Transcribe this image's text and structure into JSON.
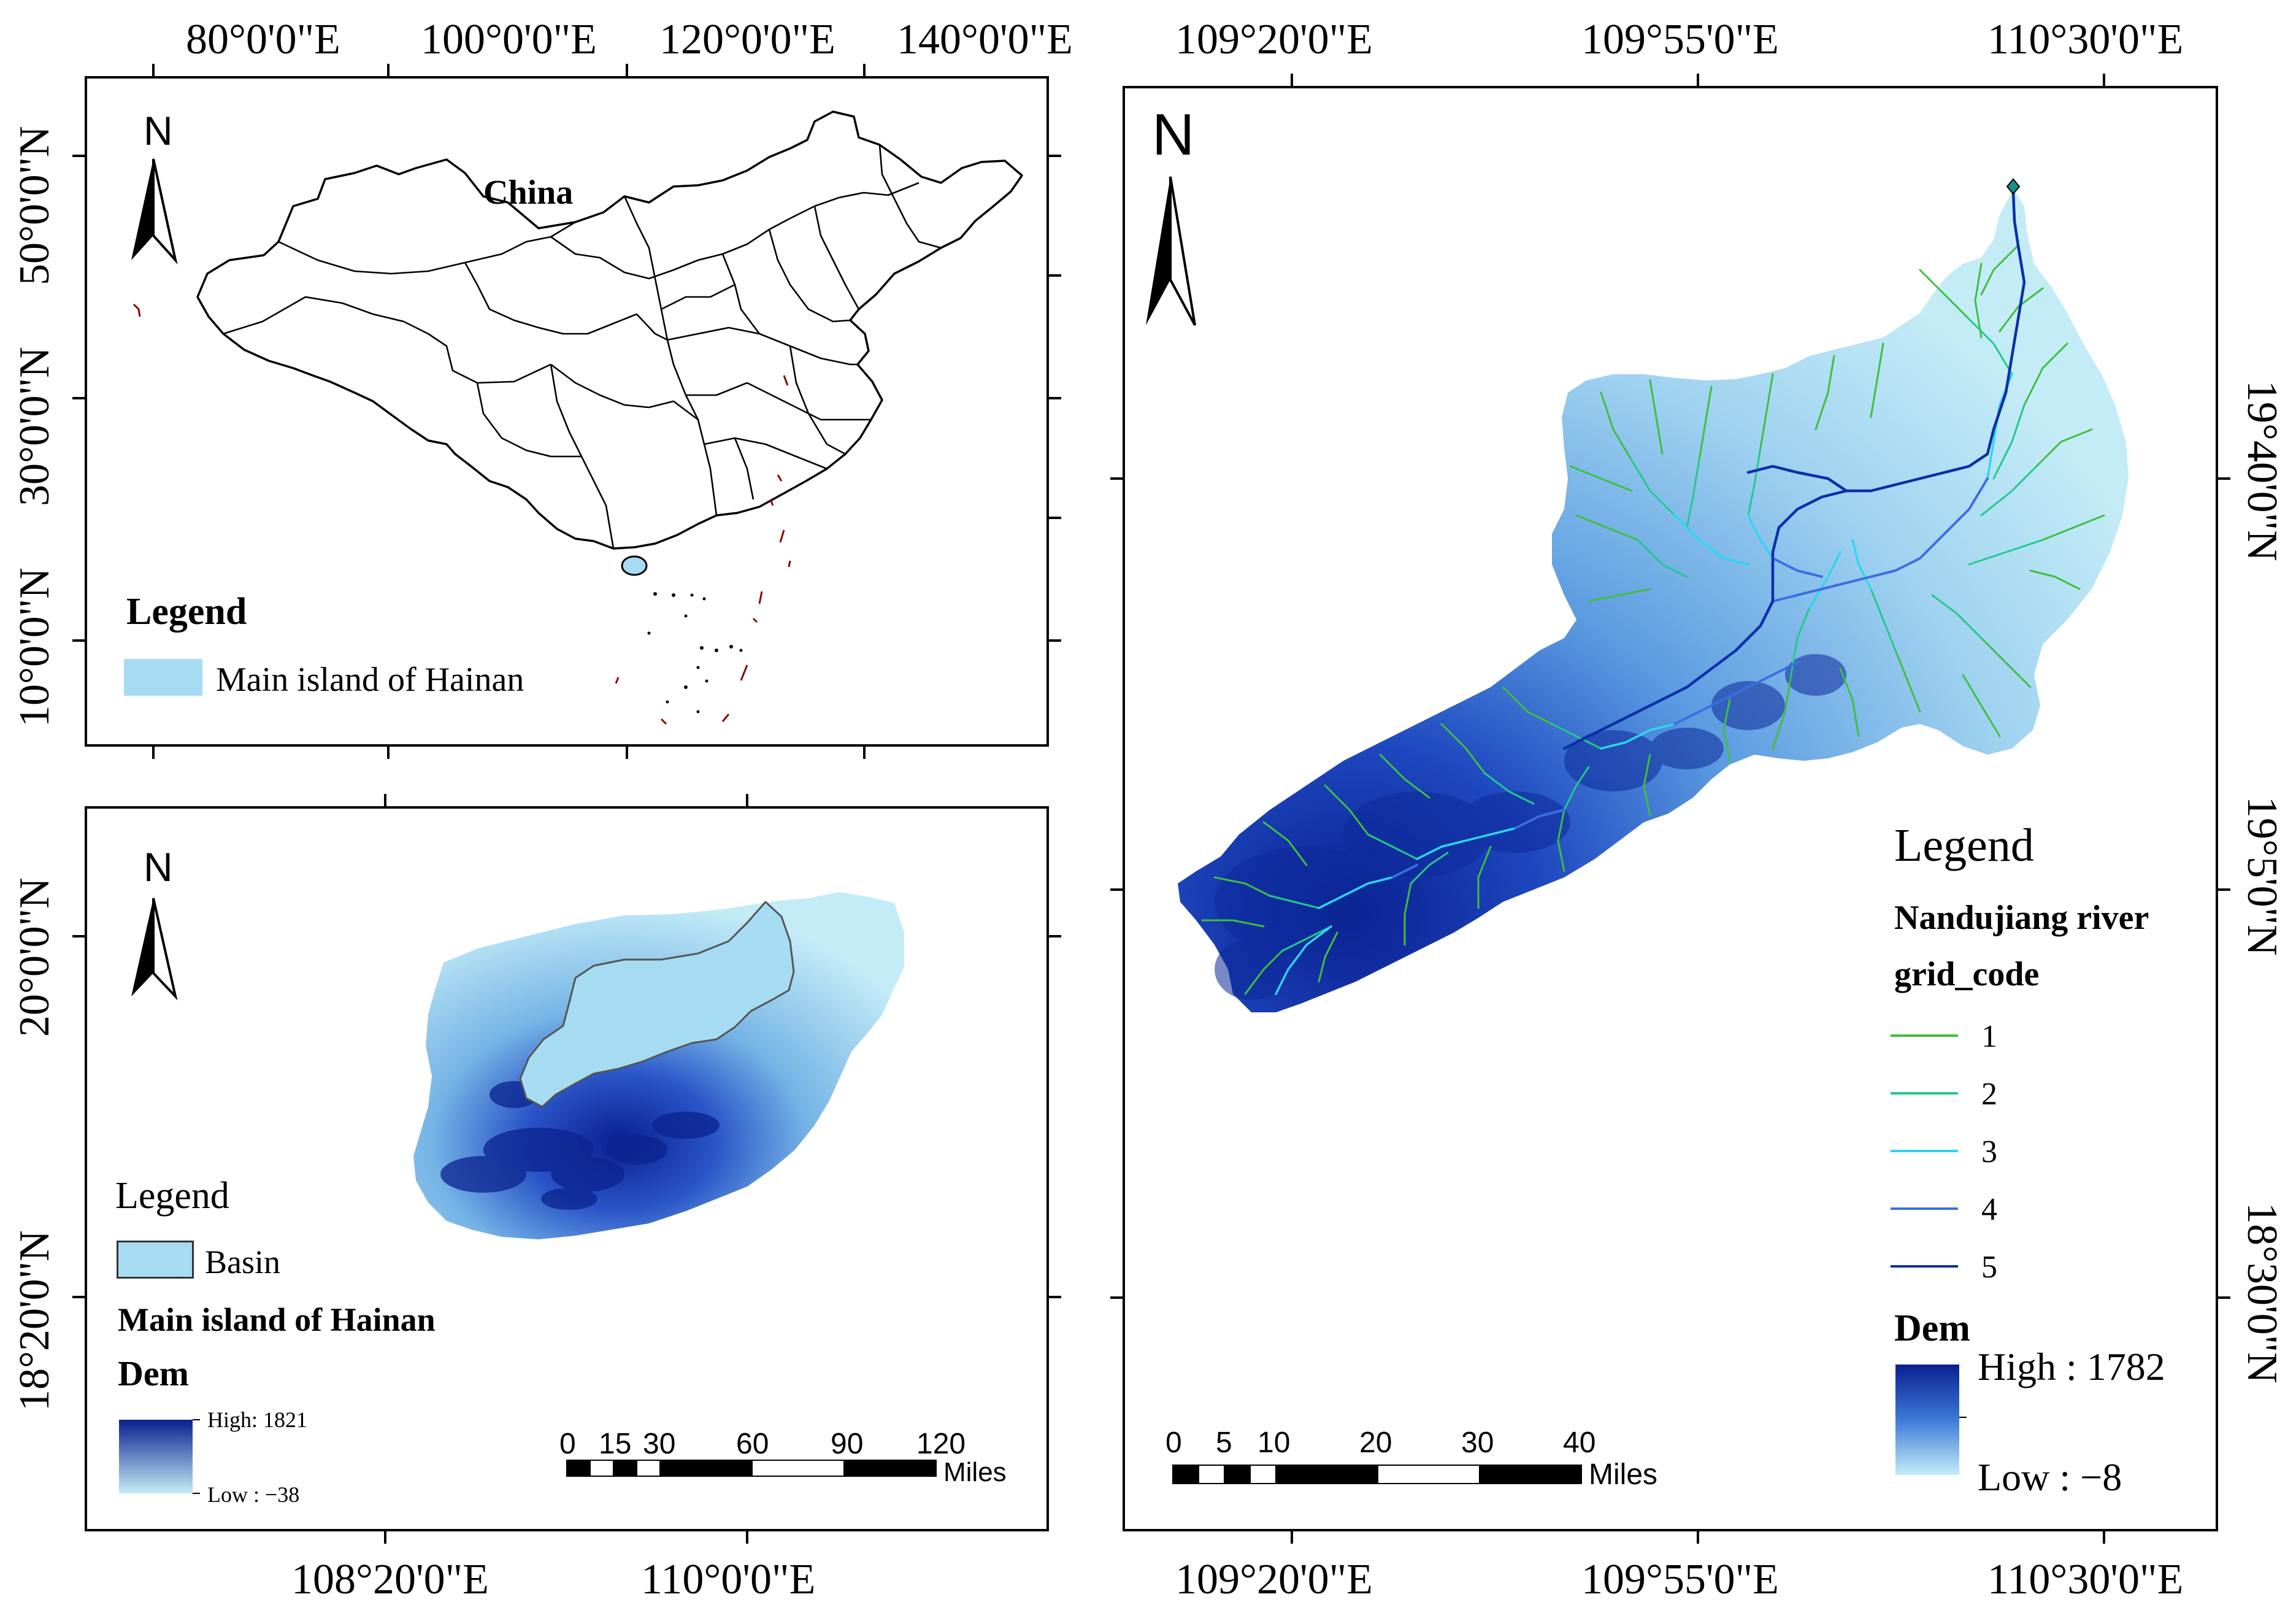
{
  "panel_china": {
    "top_ticks": [
      "80°0'0\"E",
      "100°0'0\"E",
      "120°0'0\"E",
      "140°0'0\"E"
    ],
    "left_ticks": [
      "50°0'0\"N",
      "30°0'0\"N",
      "10°0'0\"N"
    ],
    "north": "N",
    "country_label": "China",
    "legend_title": "Legend",
    "legend_item": "Main island of Hainan",
    "colors": {
      "island": "#a6dcf1",
      "outline": "#000000",
      "islets": "#8b0000"
    }
  },
  "panel_hainan": {
    "bottom_ticks": [
      "108°20'0\"E",
      "110°0'0\"E"
    ],
    "left_ticks": [
      "20°0'0\"N",
      "18°20'0\"N"
    ],
    "north": "N",
    "legend_title": "Legend",
    "legend_basin": "Basin",
    "island_label": "Main island of  Hainan",
    "dem_label": "Dem",
    "dem_high": "High: 1821",
    "dem_low": "Low : −38",
    "scale_numbers": [
      "0",
      "15",
      "30",
      "60",
      "90",
      "120"
    ],
    "scale_unit": "Miles",
    "colors": {
      "basin": "#a6dcf1",
      "dem_high": "#0a1f8f",
      "dem_low": "#c4ecf7"
    }
  },
  "panel_basin": {
    "top_ticks": [
      "109°20'0\"E",
      "109°55'0\"E",
      "110°30'0\"E"
    ],
    "bottom_ticks": [
      "109°20'0\"E",
      "109°55'0\"E",
      "110°30'0\"E"
    ],
    "right_ticks": [
      "19°40'0\"N",
      "19°5'0\"N",
      "18°30'0\"N"
    ],
    "north": "N",
    "legend_title": "Legend",
    "river_title": "Nandujiang river",
    "grid_code_title": "grid_code",
    "grid_codes": [
      {
        "code": "1",
        "color": "#3fbf3f"
      },
      {
        "code": "2",
        "color": "#22c98a"
      },
      {
        "code": "3",
        "color": "#2ed6f0"
      },
      {
        "code": "4",
        "color": "#3c6ee0"
      },
      {
        "code": "5",
        "color": "#0b2fa8"
      }
    ],
    "dem_label": "Dem",
    "dem_high": "High : 1782",
    "dem_low": "Low : −8",
    "scale_numbers": [
      "0",
      "5",
      "10",
      "20",
      "30",
      "40"
    ],
    "scale_unit": "Miles",
    "colors": {
      "dem_high": "#0a1f8f",
      "dem_low": "#c4ecf7"
    }
  }
}
